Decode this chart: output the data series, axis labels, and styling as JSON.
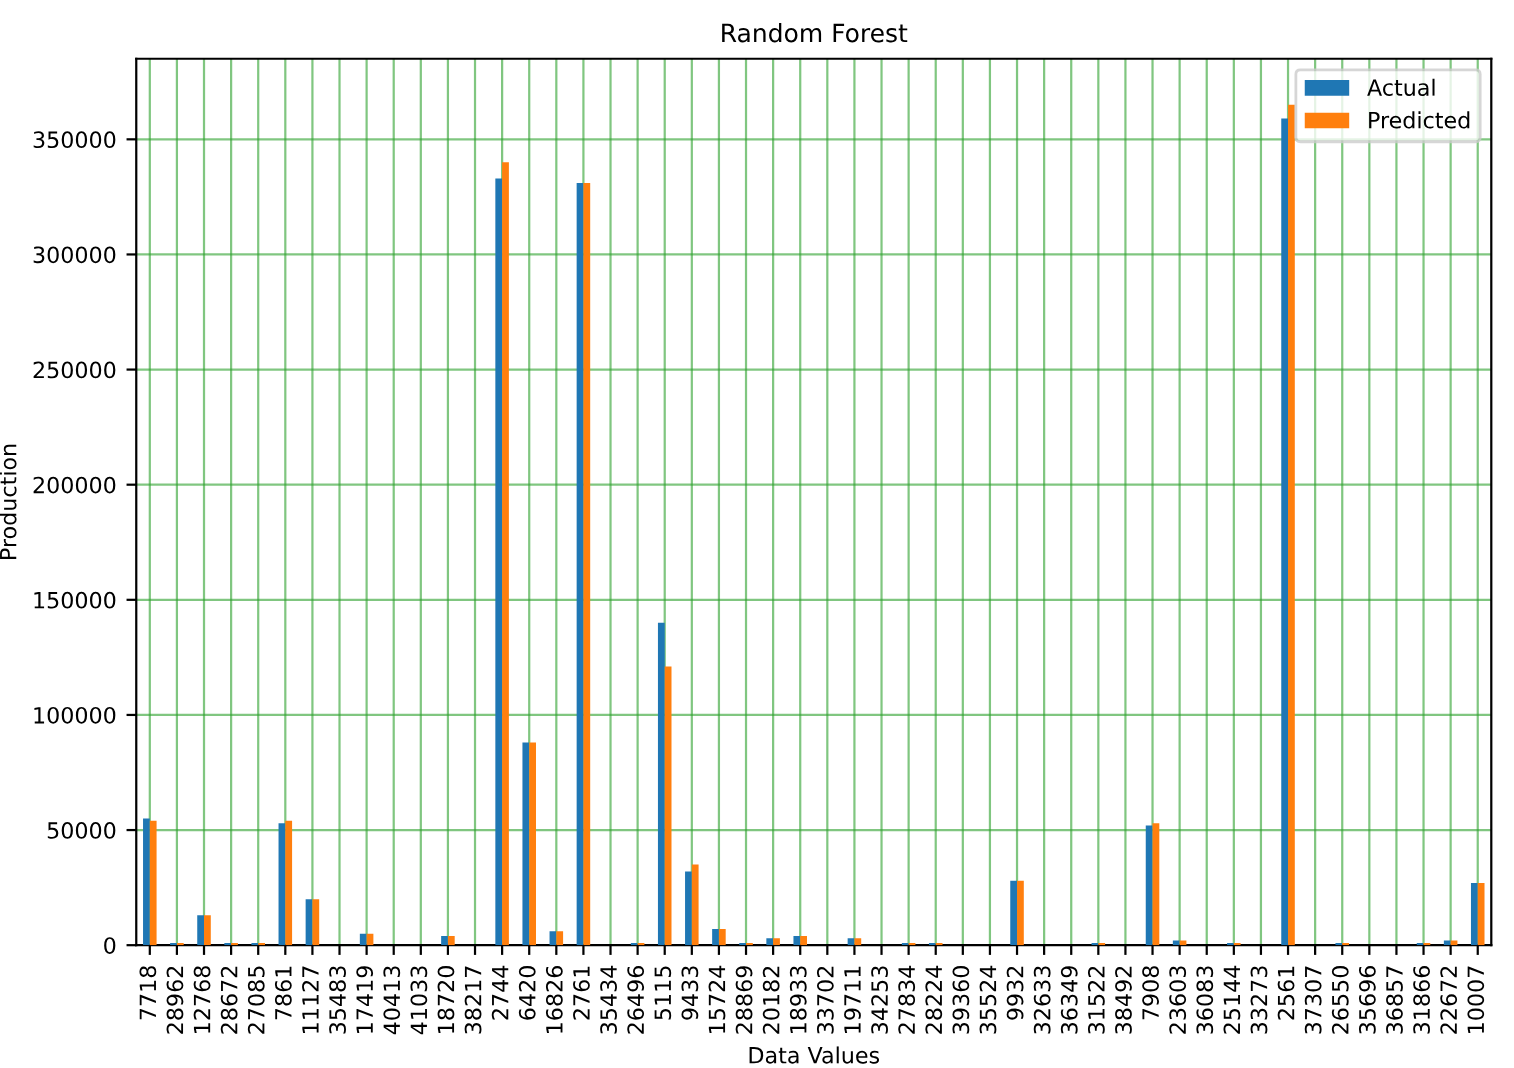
{
  "chart_data": {
    "type": "bar",
    "title": "Random Forest",
    "xlabel": "Data Values",
    "ylabel": "Production",
    "categories": [
      "7718",
      "28962",
      "12768",
      "28672",
      "27085",
      "7861",
      "11127",
      "35483",
      "17419",
      "40413",
      "41033",
      "18720",
      "38217",
      "2744",
      "6420",
      "16826",
      "2761",
      "35434",
      "26496",
      "5115",
      "9433",
      "15724",
      "28869",
      "20182",
      "18933",
      "33702",
      "19711",
      "34253",
      "27834",
      "28224",
      "39360",
      "35524",
      "9932",
      "32633",
      "36349",
      "31522",
      "38492",
      "7908",
      "23603",
      "36083",
      "25144",
      "33273",
      "2561",
      "37307",
      "26550",
      "35696",
      "36857",
      "31866",
      "22672",
      "10007"
    ],
    "series": [
      {
        "name": "Actual",
        "color": "#1f77b4",
        "values": [
          55000,
          1000,
          13000,
          1000,
          1000,
          53000,
          20000,
          0,
          5000,
          0,
          0,
          4000,
          0,
          333000,
          88000,
          6000,
          331000,
          0,
          1000,
          140000,
          32000,
          7000,
          1000,
          3000,
          4000,
          0,
          3000,
          0,
          1000,
          1000,
          0,
          0,
          28000,
          0,
          0,
          1000,
          0,
          52000,
          2000,
          0,
          1000,
          0,
          359000,
          0,
          1000,
          0,
          0,
          1000,
          2000,
          27000
        ]
      },
      {
        "name": "Predicted",
        "color": "#ff7f0e",
        "values": [
          54000,
          1000,
          13000,
          1000,
          1000,
          54000,
          20000,
          0,
          5000,
          0,
          0,
          4000,
          0,
          340000,
          88000,
          6000,
          331000,
          0,
          1000,
          121000,
          35000,
          7000,
          1000,
          3000,
          4000,
          0,
          3000,
          0,
          1000,
          1000,
          0,
          0,
          28000,
          0,
          0,
          1000,
          0,
          53000,
          2000,
          0,
          1000,
          0,
          365000,
          0,
          1000,
          0,
          0,
          1000,
          2000,
          27000
        ]
      }
    ],
    "ylim": [
      0,
      385000
    ],
    "yticks": [
      0,
      50000,
      100000,
      150000,
      200000,
      250000,
      300000,
      350000
    ],
    "grid": true,
    "legend": "top right"
  }
}
